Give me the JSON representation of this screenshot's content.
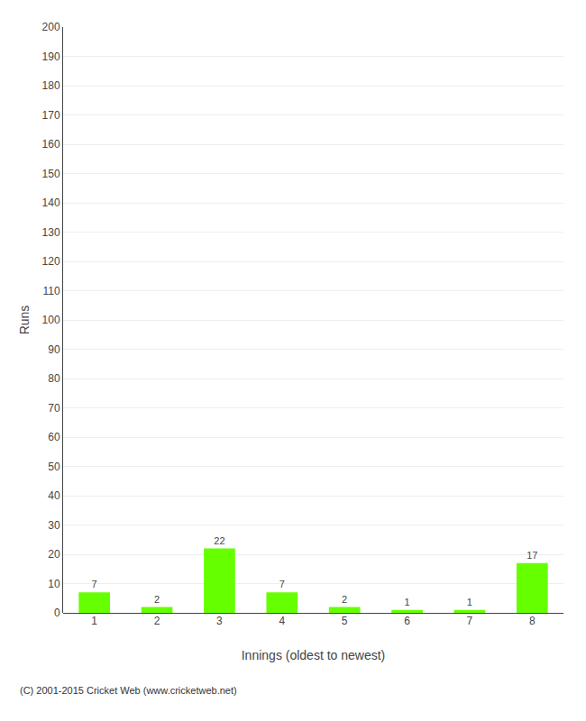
{
  "chart_data": {
    "type": "bar",
    "categories": [
      "1",
      "2",
      "3",
      "4",
      "5",
      "6",
      "7",
      "8"
    ],
    "values": [
      7,
      2,
      22,
      7,
      2,
      1,
      1,
      17
    ],
    "color": "#66ff00",
    "xlabel": "Innings (oldest to newest)",
    "ylabel": "Runs",
    "ylim": [
      0,
      200
    ],
    "yticks": [
      0,
      10,
      20,
      30,
      40,
      50,
      60,
      70,
      80,
      90,
      100,
      110,
      120,
      130,
      140,
      150,
      160,
      170,
      180,
      190,
      200
    ],
    "grid": true,
    "data_labels": true,
    "annotations": [
      "(C) 2001-2015 Cricket Web (www.cricketweb.net)"
    ]
  }
}
